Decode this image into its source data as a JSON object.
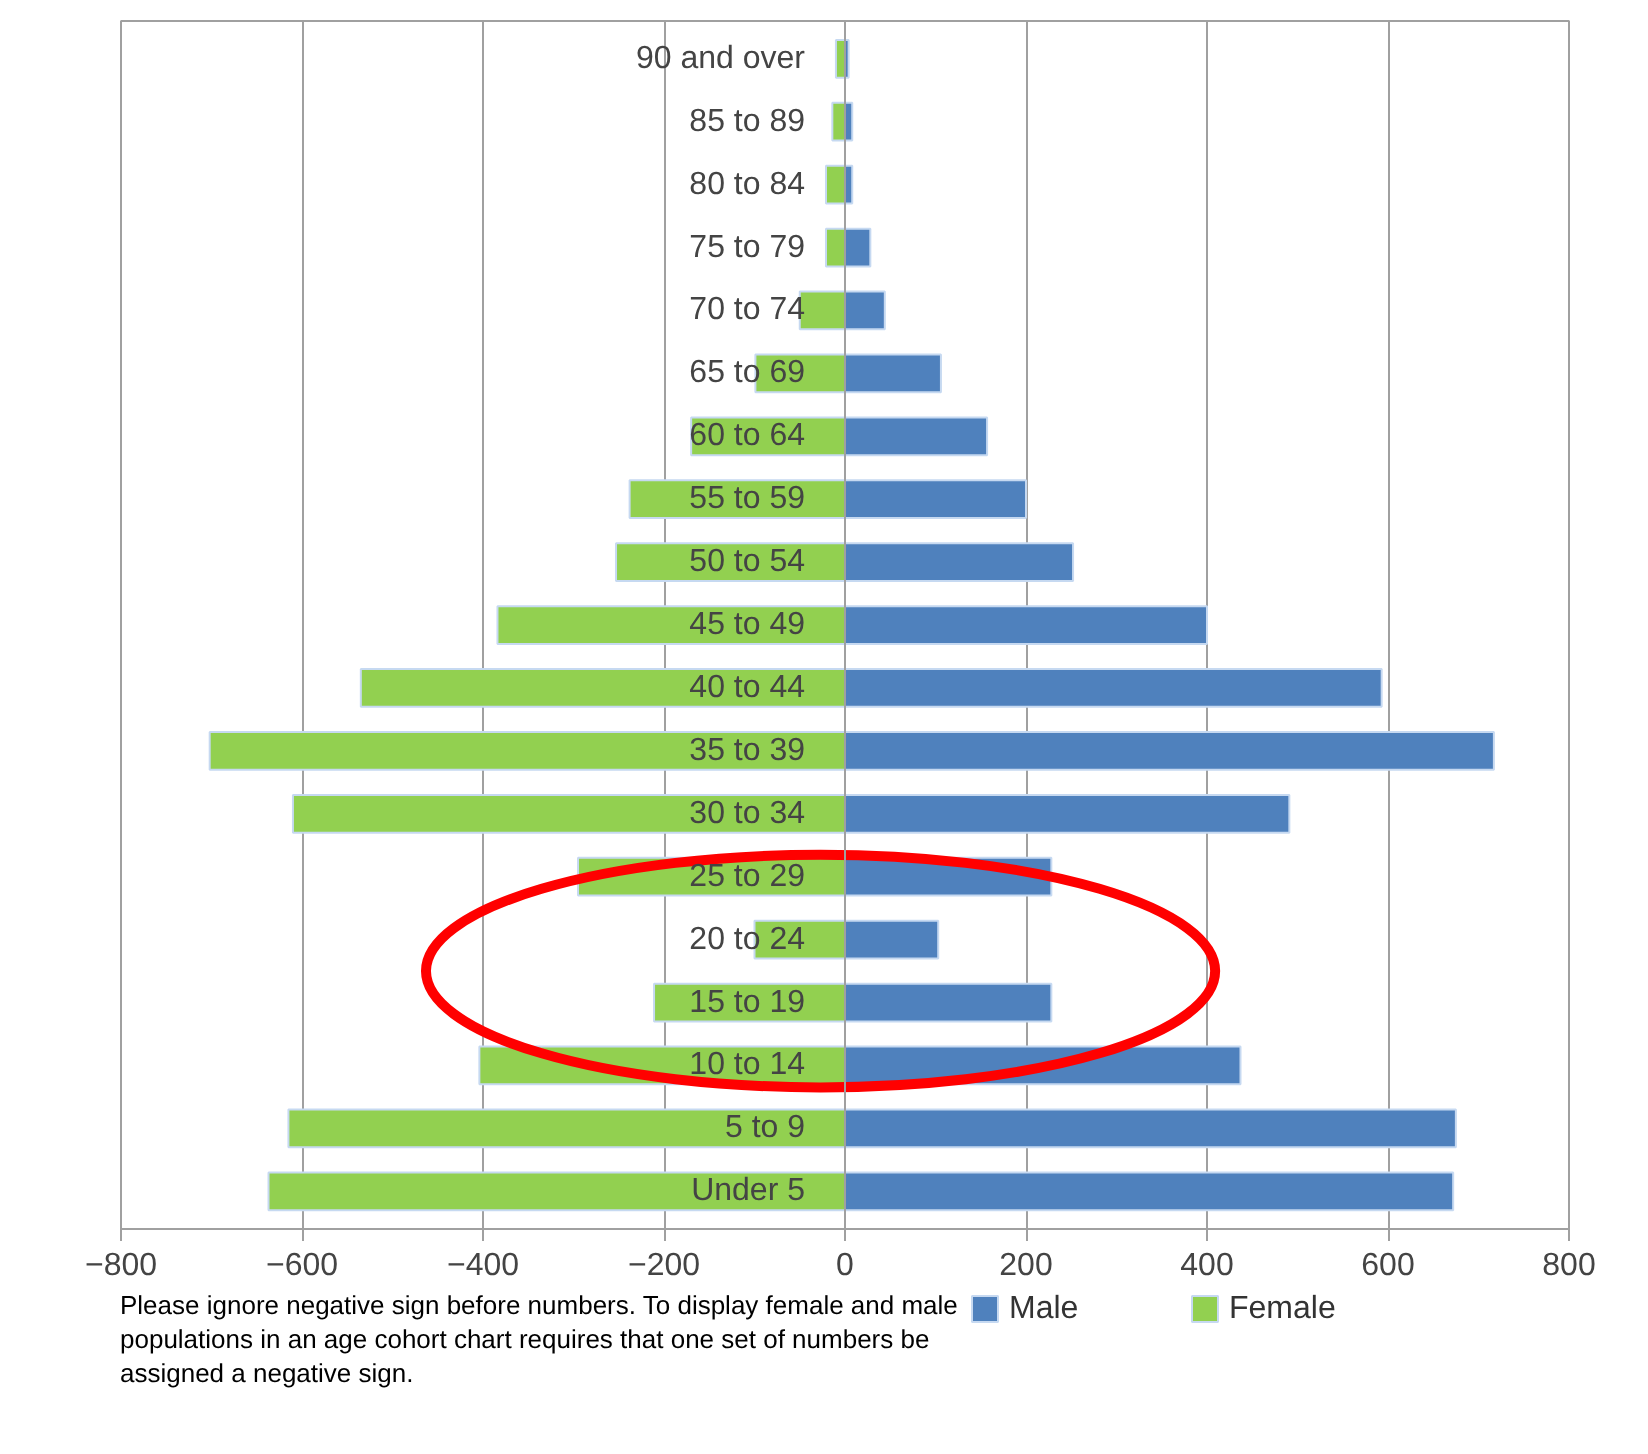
{
  "chart_data": {
    "type": "bar",
    "orientation": "horizontal",
    "stacked": true,
    "categories": [
      "90 and over",
      "85 to 89",
      "80 to 84",
      "75 to 79",
      "70 to 74",
      "65 to 69",
      "60 to 64",
      "55 to 59",
      "50 to 54",
      "45 to 49",
      "40 to 44",
      "35 to 39",
      "30 to 34",
      "25 to 29",
      "20 to 24",
      "15 to 19",
      "10 to 14",
      "5 to 9",
      "Under 5"
    ],
    "series": [
      {
        "name": "Male",
        "color": "#4f81bd",
        "values": [
          4,
          8,
          8,
          28,
          44,
          106,
          157,
          200,
          252,
          400,
          593,
          717,
          491,
          228,
          103,
          228,
          437,
          675,
          672
        ]
      },
      {
        "name": "Female",
        "color": "#92d050",
        "values": [
          -10,
          -14,
          -21,
          -21,
          -50,
          -99,
          -170,
          -238,
          -253,
          -384,
          -535,
          -702,
          -610,
          -295,
          -100,
          -211,
          -404,
          -615,
          -637
        ]
      }
    ],
    "xlim": [
      -800,
      800
    ],
    "xticks": [
      -800,
      -600,
      -400,
      -200,
      0,
      200,
      400,
      600,
      800
    ],
    "grid": "x",
    "legend": "bottom",
    "annotations": [
      "Please ignore negative sign before numbers. To display female and male populations in an age cohort chart requires that one set of numbers be assigned a negative sign."
    ]
  }
}
